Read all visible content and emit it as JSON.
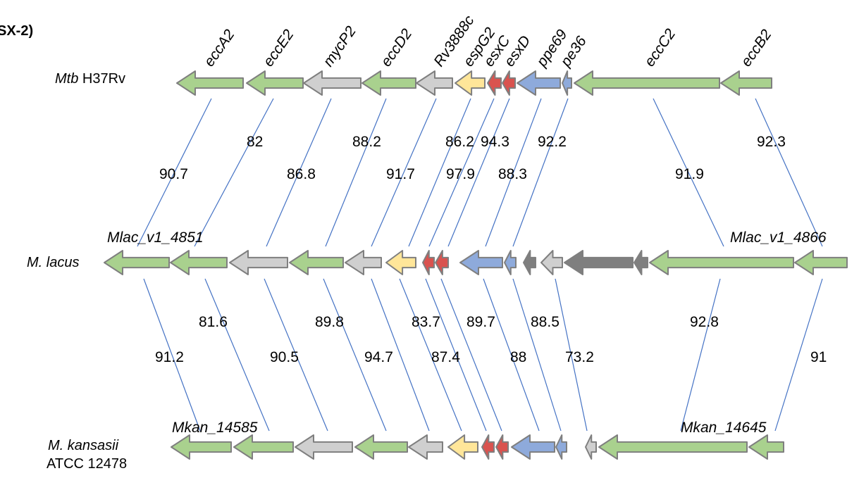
{
  "panel_title": "SX-2)",
  "colors": {
    "green": "#a9d18e",
    "gray": "#cfcfcf",
    "dark_gray": "#7f7f7f",
    "yellow": "#ffe699",
    "red": "#d9534f",
    "blue": "#8eaadb",
    "outline": "#7f7f7f",
    "link": "#4472c4"
  },
  "genomes": [
    {
      "id": "mtb",
      "name_italic": "Mtb",
      "name_plain": " H37Rv",
      "line2": ""
    },
    {
      "id": "mlac",
      "name_italic": "M. lacus",
      "name_plain": "",
      "line2": ""
    },
    {
      "id": "mkan",
      "name_italic": "M. kansasii",
      "name_plain": "",
      "line2": "ATCC 12478"
    }
  ],
  "top_gene_names": [
    "eccA2",
    "eccE2",
    "mycP2",
    "eccD2",
    "Rv3888c",
    "espG2",
    "esxC",
    "esxD",
    "ppe69",
    "pe36",
    "eccC2",
    "eccB2"
  ],
  "locus_labels": {
    "mlac_left": "Mlac_v1_4851",
    "mlac_right": "Mlac_v1_4866",
    "mkan_left": "Mkan_14585",
    "mkan_right": "Mkan_14645"
  },
  "identity_top": [
    "90.7",
    "82",
    "86.8",
    "88.2",
    "91.7",
    "86.2",
    "97.9",
    "94.3",
    "88.3",
    "92.2",
    "91.9",
    "92.3"
  ],
  "identity_bottom": [
    "91.2",
    "81.6",
    "90.5",
    "89.8",
    "94.7",
    "83.7",
    "87.4",
    "89.7",
    "88",
    "88.5",
    "73.2",
    "92.8",
    "91"
  ]
}
